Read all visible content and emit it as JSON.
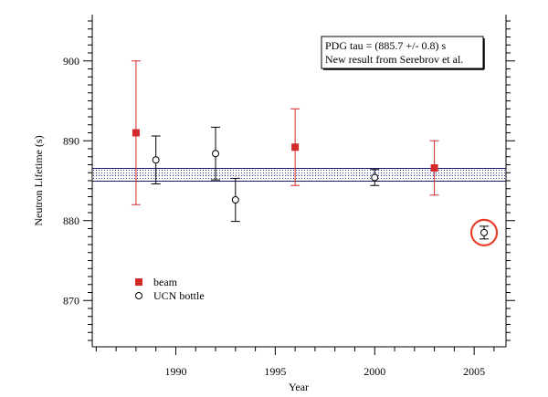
{
  "chart_data": {
    "type": "scatter",
    "xlabel": "Year",
    "ylabel": "Neutron Lifetime (s)",
    "xlim": [
      1985.8,
      2006.6
    ],
    "ylim": [
      864.2,
      905.8
    ],
    "x_ticks": [
      1990,
      1995,
      2000,
      2005
    ],
    "x_tick_labels": [
      "1990",
      "1995",
      "2000",
      "2005"
    ],
    "y_ticks": [
      870,
      880,
      890,
      900
    ],
    "y_tick_labels": [
      "870",
      "880",
      "890",
      "900"
    ],
    "x_minor_step": 1,
    "y_minor_step": 1,
    "band": {
      "center": 885.7,
      "low": 884.95,
      "high": 886.55
    },
    "annotation_lines": [
      "PDG tau = (885.7 +/- 0.8) s",
      "New result from Serebrov et al."
    ],
    "series": [
      {
        "name": "beam",
        "marker": "filled-square",
        "color": "#d42a2a",
        "points": [
          {
            "x": 1988,
            "y": 891.0,
            "err": 9.0
          },
          {
            "x": 1996,
            "y": 889.2,
            "err": 4.8
          },
          {
            "x": 2003,
            "y": 886.6,
            "err": 3.4
          }
        ]
      },
      {
        "name": "UCN bottle",
        "marker": "open-circle",
        "color": "#000000",
        "points": [
          {
            "x": 1989,
            "y": 887.6,
            "err": 3.0
          },
          {
            "x": 1992,
            "y": 888.4,
            "err": 3.3
          },
          {
            "x": 1993,
            "y": 882.6,
            "err": 2.7
          },
          {
            "x": 2000,
            "y": 885.4,
            "err": 1.0
          },
          {
            "x": 2005.5,
            "y": 878.5,
            "err": 0.8,
            "highlighted": true
          }
        ]
      }
    ],
    "legend": [
      "beam",
      "UCN bottle"
    ],
    "highlight_color": "#e8402a"
  }
}
